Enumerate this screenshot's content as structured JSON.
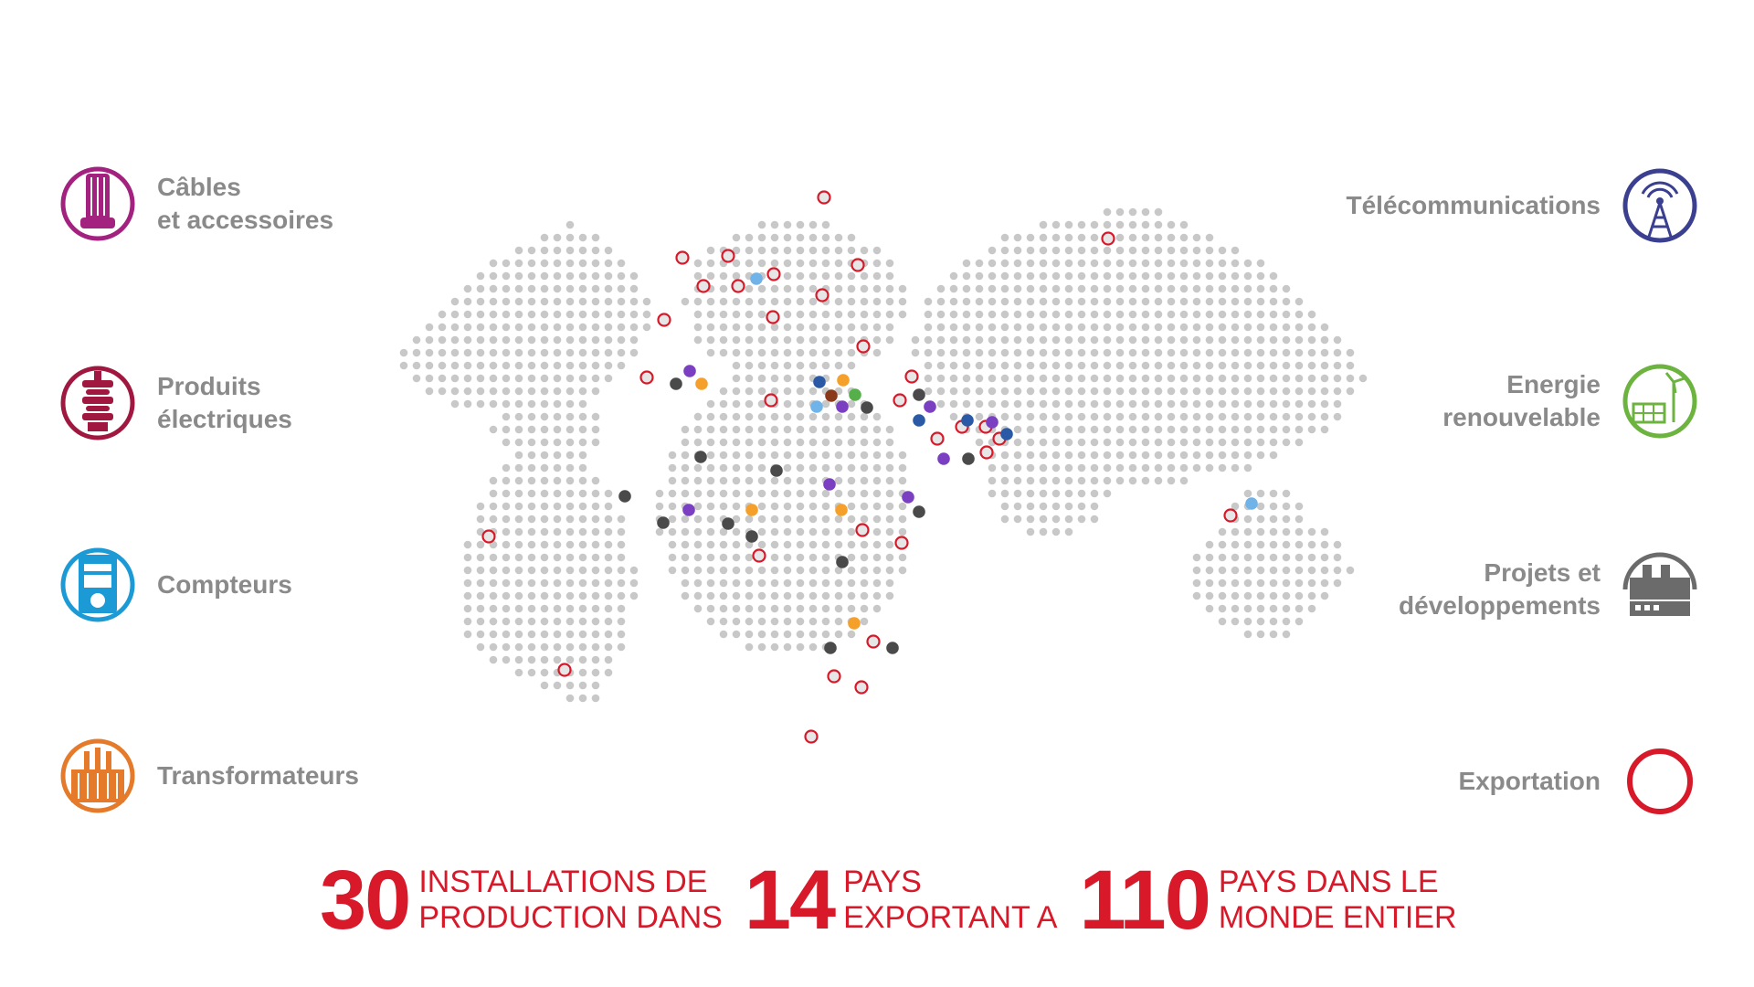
{
  "legend_left": [
    {
      "label": "Câbles\net accessoires",
      "color": "#a3217f",
      "icon": "cable-icon"
    },
    {
      "label": "Produits\nélectriques",
      "color": "#a0183f",
      "icon": "insulator-icon"
    },
    {
      "label": "Compteurs",
      "color": "#1c9ad6",
      "icon": "meter-icon"
    },
    {
      "label": "Transformateurs",
      "color": "#e47a2a",
      "icon": "transformer-icon"
    }
  ],
  "legend_right": [
    {
      "label": "Télécommunications",
      "color": "#3b3f8f",
      "icon": "antenna-icon"
    },
    {
      "label": "Energie\nrenouvelable",
      "color": "#6db33f",
      "icon": "renewable-icon"
    },
    {
      "label": "Projets et\ndéveloppements",
      "color": "#6b6b6b",
      "icon": "factory-icon"
    },
    {
      "label": "Exportation",
      "color": "#d7192a",
      "icon": "export-ring-icon"
    }
  ],
  "stats": [
    {
      "number": "30",
      "text": "INSTALLATIONS DE\nPRODUCTION DANS"
    },
    {
      "number": "14",
      "text": "PAYS\nEXPORTANT A"
    },
    {
      "number": "110",
      "text": "PAYS DANS LE\nMONDE ENTIER"
    }
  ],
  "colors": {
    "map_dot": "#c8c8c8",
    "export": "#d7192a",
    "stats_text": "#d7192a",
    "legend_text": "#8a8a8a",
    "marker_dark": "#4a4a4a",
    "marker_purple": "#7b3fc2",
    "marker_orange": "#f5a02a",
    "marker_navy": "#2a5aa6",
    "marker_lightblue": "#6fb3e8",
    "marker_green": "#55b04a",
    "marker_brown": "#8a3a1a"
  }
}
